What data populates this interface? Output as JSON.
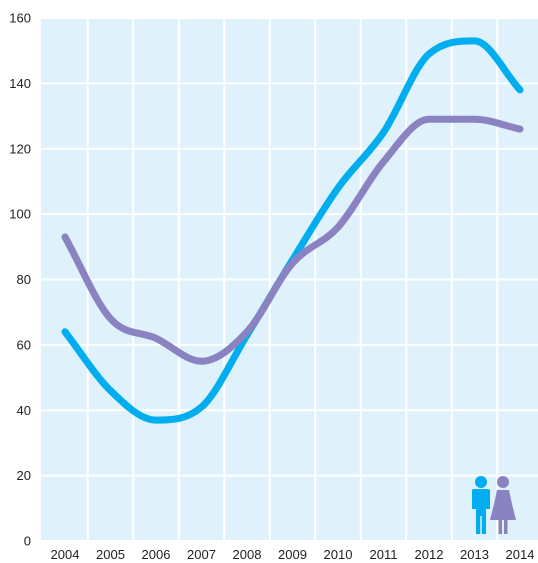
{
  "chart_data": {
    "type": "line",
    "title": "",
    "xlabel": "",
    "ylabel": "",
    "categories": [
      "2004",
      "2005",
      "2006",
      "2007",
      "2008",
      "2009",
      "2010",
      "2011",
      "2012",
      "2013",
      "2014"
    ],
    "ylim": [
      0,
      160
    ],
    "y_ticks": [
      "0",
      "20",
      "40",
      "60",
      "80",
      "100",
      "120",
      "140",
      "160"
    ],
    "grid": true,
    "background_color": "#dff1fb",
    "series": [
      {
        "color": "#00aeef",
        "icon": "male-figure-icon",
        "values": [
          64,
          46,
          37,
          41,
          63,
          86,
          108,
          125,
          149,
          153,
          138
        ]
      },
      {
        "color": "#8a82c1",
        "icon": "female-figure-icon",
        "values": [
          93,
          68,
          62,
          55,
          64,
          85,
          96,
          116,
          129,
          129,
          126
        ]
      }
    ],
    "legend": {
      "placement": "bottom-right",
      "items": [
        {
          "icon": "male-figure-icon",
          "color": "#00aeef"
        },
        {
          "icon": "female-figure-icon",
          "color": "#8a82c1"
        }
      ]
    }
  }
}
